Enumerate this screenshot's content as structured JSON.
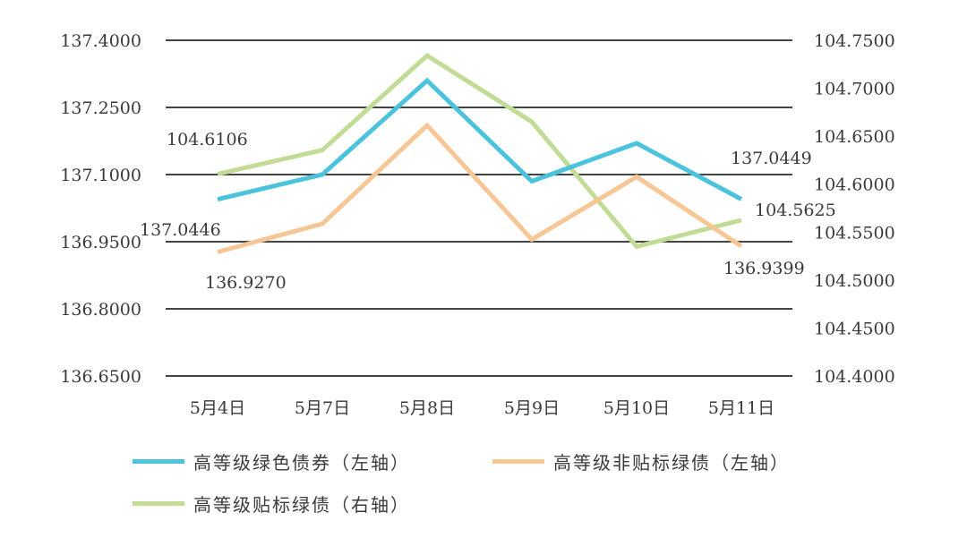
{
  "chart_data": {
    "type": "line",
    "categories": [
      "5月4日",
      "5月7日",
      "5月8日",
      "5月9日",
      "5月10日",
      "5月11日"
    ],
    "left_axis": {
      "ylim": [
        136.65,
        137.4
      ],
      "ticks": [
        "137.4000",
        "137.2500",
        "137.1000",
        "136.9500",
        "136.8000",
        "136.6500"
      ]
    },
    "right_axis": {
      "ylim": [
        104.4,
        104.75
      ],
      "ticks": [
        "104.7500",
        "104.7000",
        "104.6500",
        "104.6000",
        "104.5500",
        "104.5000",
        "104.4500",
        "104.4000"
      ]
    },
    "series": [
      {
        "name": "高等级绿色债券（左轴）",
        "axis": "left",
        "color": "#4cc3dc",
        "values": [
          137.0446,
          137.1,
          137.31,
          137.085,
          137.17,
          137.0449
        ]
      },
      {
        "name": "高等级非贴标绿债（左轴）",
        "axis": "left",
        "color": "#f7c695",
        "values": [
          136.927,
          136.99,
          137.21,
          136.955,
          137.095,
          136.9399
        ]
      },
      {
        "name": "高等级贴标绿债（右轴）",
        "axis": "right",
        "color": "#c2dc95",
        "values": [
          104.6106,
          104.6355,
          104.734,
          104.665,
          104.535,
          104.5625
        ]
      }
    ],
    "annotations": [
      "104.6106",
      "137.0446",
      "136.9270",
      "137.0449",
      "104.5625",
      "136.9399"
    ],
    "grid": true,
    "legend_position": "bottom"
  }
}
